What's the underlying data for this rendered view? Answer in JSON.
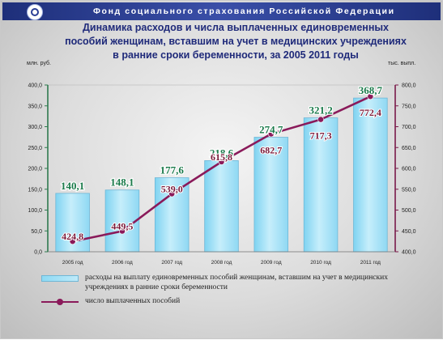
{
  "header": {
    "org_name": "Фонд социального страхования Российской Федерации",
    "title_lines": [
      "Динамика расходов и числа выплаченных единовременных",
      "пособий женщинам, вставшим на учет в медицинских учреждениях",
      "в ранние сроки беременности, за 2005 2011 годы"
    ]
  },
  "colors": {
    "bar": "#a6e2f7",
    "bar_border": "#6fb7d6",
    "line": "#8a1a5a",
    "bar_label": "#1a7a4a",
    "line_label": "#7a1a3a",
    "left_axis": "#2f7a4f",
    "right_axis": "#7a1a4a",
    "header_bar": "#2a3f95"
  },
  "chart_data": {
    "type": "bar+line",
    "categories": [
      "2005 год",
      "2006 год",
      "2007 год",
      "2008 год",
      "2009 год",
      "2010 год",
      "2011 год"
    ],
    "left_axis": {
      "label": "млн. руб.",
      "ylim": [
        0,
        400
      ],
      "ticks": [
        "0,0",
        "50,0",
        "100,0",
        "150,0",
        "200,0",
        "250,0",
        "300,0",
        "350,0",
        "400,0"
      ]
    },
    "right_axis": {
      "label": "тыс. выпл.",
      "ylim": [
        400,
        800
      ],
      "ticks": [
        "400,0",
        "450,0",
        "500,0",
        "550,0",
        "600,0",
        "650,0",
        "700,0",
        "750,0",
        "800,0"
      ]
    },
    "series": [
      {
        "name": "расходы на выплату единовременных пособий женщинам, вставшим на учет в медицинских учреждениях в ранние сроки беременности",
        "type": "bar",
        "axis": "left",
        "values": [
          140.1,
          148.1,
          177.6,
          218.6,
          274.7,
          321.2,
          368.7
        ],
        "labels": [
          "140,1",
          "148,1",
          "177,6",
          "218,6",
          "274,7",
          "321,2",
          "368,7"
        ]
      },
      {
        "name": "число выплаченных пособий",
        "type": "line",
        "axis": "right",
        "values": [
          424.8,
          449.5,
          539.0,
          615.8,
          682.7,
          717.3,
          772.4
        ],
        "labels": [
          "424,8",
          "449,5",
          "539,0",
          "615,8",
          "682,7",
          "717,3",
          "772,4"
        ]
      }
    ],
    "grid": false,
    "legend": "bottom"
  }
}
